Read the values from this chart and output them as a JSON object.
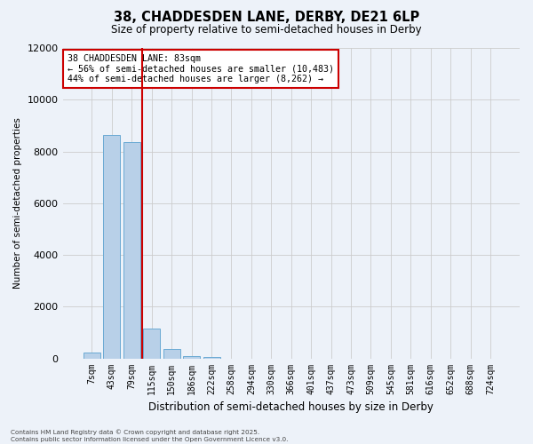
{
  "title_line1": "38, CHADDESDEN LANE, DERBY, DE21 6LP",
  "title_line2": "Size of property relative to semi-detached houses in Derby",
  "xlabel": "Distribution of semi-detached houses by size in Derby",
  "ylabel": "Number of semi-detached properties",
  "annotation_title": "38 CHADDESDEN LANE: 83sqm",
  "annotation_line2": "← 56% of semi-detached houses are smaller (10,483)",
  "annotation_line3": "44% of semi-detached houses are larger (8,262) →",
  "footer_line1": "Contains HM Land Registry data © Crown copyright and database right 2025.",
  "footer_line2": "Contains public sector information licensed under the Open Government Licence v3.0.",
  "bins": [
    "7sqm",
    "43sqm",
    "79sqm",
    "115sqm",
    "150sqm",
    "186sqm",
    "222sqm",
    "258sqm",
    "294sqm",
    "330sqm",
    "366sqm",
    "401sqm",
    "437sqm",
    "473sqm",
    "509sqm",
    "545sqm",
    "581sqm",
    "616sqm",
    "652sqm",
    "688sqm",
    "724sqm"
  ],
  "values": [
    220,
    8650,
    8350,
    1150,
    350,
    100,
    60,
    0,
    0,
    0,
    0,
    0,
    0,
    0,
    0,
    0,
    0,
    0,
    0,
    0,
    0
  ],
  "bar_color": "#b8d0e8",
  "bar_edge_color": "#6aaad4",
  "grid_color": "#cccccc",
  "background_color": "#edf2f9",
  "vline_color": "#cc0000",
  "annotation_box_edgecolor": "#cc0000",
  "ylim": [
    0,
    12000
  ],
  "yticks": [
    0,
    2000,
    4000,
    6000,
    8000,
    10000,
    12000
  ]
}
